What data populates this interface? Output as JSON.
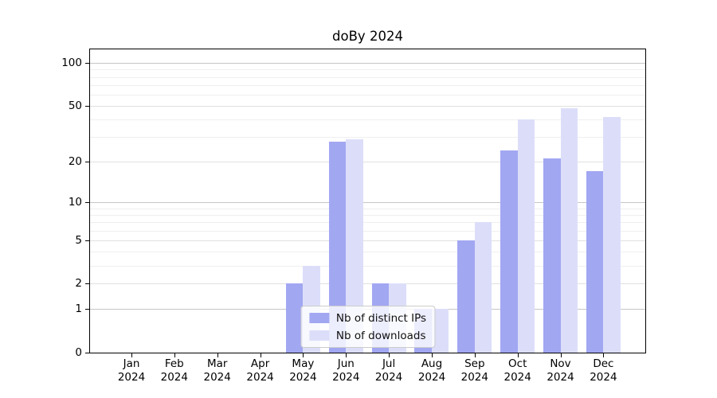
{
  "chart_data": {
    "type": "bar",
    "title": "doBy 2024",
    "categories": [
      "Jan 2024",
      "Feb 2024",
      "Mar 2024",
      "Apr 2024",
      "May 2024",
      "Jun 2024",
      "Jul 2024",
      "Aug 2024",
      "Sep 2024",
      "Oct 2024",
      "Nov 2024",
      "Dec 2024"
    ],
    "series": [
      {
        "name": "Nb of distinct IPs",
        "color": "#a2a7f2",
        "values": [
          0,
          0,
          0,
          0,
          2,
          28,
          2,
          1,
          5,
          24,
          21,
          17
        ]
      },
      {
        "name": "Nb of downloads",
        "color": "#dcdef9",
        "values": [
          0,
          0,
          0,
          0,
          3,
          29,
          2,
          1,
          7,
          40,
          48,
          42
        ]
      }
    ],
    "yticks": [
      0,
      1,
      2,
      5,
      10,
      20,
      50,
      100
    ],
    "y_scale": "log10(value+1)",
    "ylim": [
      0,
      125
    ],
    "xlabel": "",
    "ylabel": "",
    "grid": "horizontal major+minor",
    "legend_position": "lower center",
    "colors": {
      "grid_decade": "#c6c6c6",
      "grid_labeled": "#e0e0e0",
      "grid_minor": "#efefef",
      "spine": "#000000",
      "text": "#000000"
    }
  }
}
